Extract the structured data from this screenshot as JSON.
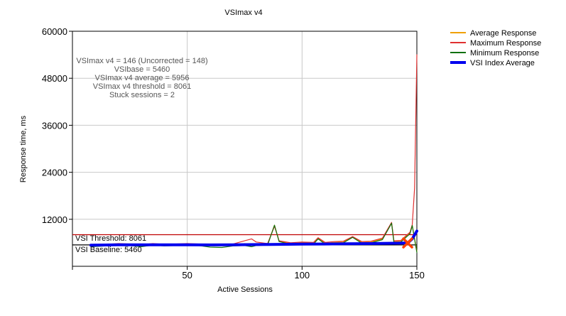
{
  "chart_data": {
    "type": "line",
    "title": "VSImax v4",
    "xlabel": "Active Sessions",
    "ylabel": "Response time, ms",
    "xlim": [
      0,
      150
    ],
    "ylim": [
      0,
      60000
    ],
    "x_ticks": [
      50,
      100,
      150
    ],
    "y_ticks": [
      12000,
      24000,
      36000,
      48000,
      60000
    ],
    "grid": true,
    "legend_position": "right",
    "info_lines": [
      "VSImax v4 = 146 (Uncorrected = 148)",
      "VSIbase = 5460",
      "VSImax v4 average = 5956",
      "VSImax v4 threshold = 8061",
      "Stuck sessions = 2"
    ],
    "threshold": {
      "label": "VSI Threshold: 8061",
      "value": 8061,
      "color": "#c00000"
    },
    "baseline": {
      "label": "VSI Baseline: 5460",
      "value": 5460,
      "color": "#000000"
    },
    "vsimax_marker": {
      "x": 146,
      "y": 5956,
      "color": "#ff4000"
    },
    "series": [
      {
        "name": "Average Response",
        "color": "#f0a000",
        "x": [
          8,
          15,
          20,
          25,
          30,
          35,
          40,
          45,
          50,
          55,
          60,
          65,
          70,
          75,
          78,
          80,
          85,
          88,
          90,
          95,
          100,
          105,
          107,
          110,
          114,
          118,
          122,
          126,
          130,
          135,
          139,
          140,
          143,
          147,
          148,
          150
        ],
        "y": [
          5200,
          5400,
          5600,
          5500,
          5300,
          5600,
          5400,
          5500,
          5600,
          5500,
          5300,
          5400,
          5500,
          5800,
          5600,
          5500,
          5600,
          10500,
          6400,
          5800,
          6000,
          5900,
          7200,
          5900,
          6100,
          6200,
          7500,
          6100,
          6200,
          7000,
          11000,
          6300,
          6400,
          8500,
          10500,
          3800
        ]
      },
      {
        "name": "Maximum Response",
        "color": "#e03030",
        "x": [
          8,
          15,
          20,
          25,
          30,
          35,
          40,
          45,
          50,
          55,
          60,
          65,
          70,
          75,
          78,
          80,
          85,
          88,
          90,
          95,
          100,
          105,
          107,
          110,
          114,
          118,
          122,
          126,
          130,
          135,
          139,
          140,
          143,
          147,
          148,
          149,
          150
        ],
        "y": [
          5400,
          5600,
          5800,
          5700,
          5500,
          5800,
          5600,
          5700,
          5800,
          5700,
          5500,
          5600,
          5700,
          6500,
          7000,
          6200,
          5800,
          10200,
          6500,
          6000,
          6200,
          6100,
          7300,
          6100,
          6300,
          6400,
          7600,
          6300,
          6400,
          7200,
          11200,
          6500,
          6600,
          8700,
          10600,
          20000,
          54000
        ]
      },
      {
        "name": "Minimum Response",
        "color": "#107010",
        "x": [
          8,
          15,
          20,
          25,
          30,
          35,
          40,
          45,
          50,
          55,
          60,
          65,
          70,
          75,
          78,
          80,
          85,
          88,
          90,
          95,
          100,
          105,
          107,
          110,
          114,
          118,
          122,
          126,
          130,
          135,
          139,
          140,
          143,
          147,
          148,
          150
        ],
        "y": [
          5000,
          5200,
          5400,
          5300,
          5000,
          5400,
          5200,
          5300,
          5400,
          5300,
          4900,
          4800,
          5200,
          5300,
          5000,
          5300,
          5400,
          10500,
          6300,
          5600,
          5800,
          5700,
          7000,
          5700,
          5900,
          6000,
          7400,
          5900,
          6000,
          6800,
          11000,
          6100,
          6200,
          8300,
          10400,
          3500
        ]
      },
      {
        "name": "VSI Index Average",
        "color": "#0000ee",
        "x": [
          8,
          20,
          30,
          40,
          50,
          60,
          70,
          80,
          90,
          100,
          110,
          120,
          130,
          140,
          146,
          148,
          150
        ],
        "y": [
          5400,
          5500,
          5500,
          5500,
          5500,
          5450,
          5500,
          5550,
          5600,
          5650,
          5700,
          5750,
          5800,
          5900,
          5956,
          7000,
          9000
        ]
      }
    ]
  }
}
